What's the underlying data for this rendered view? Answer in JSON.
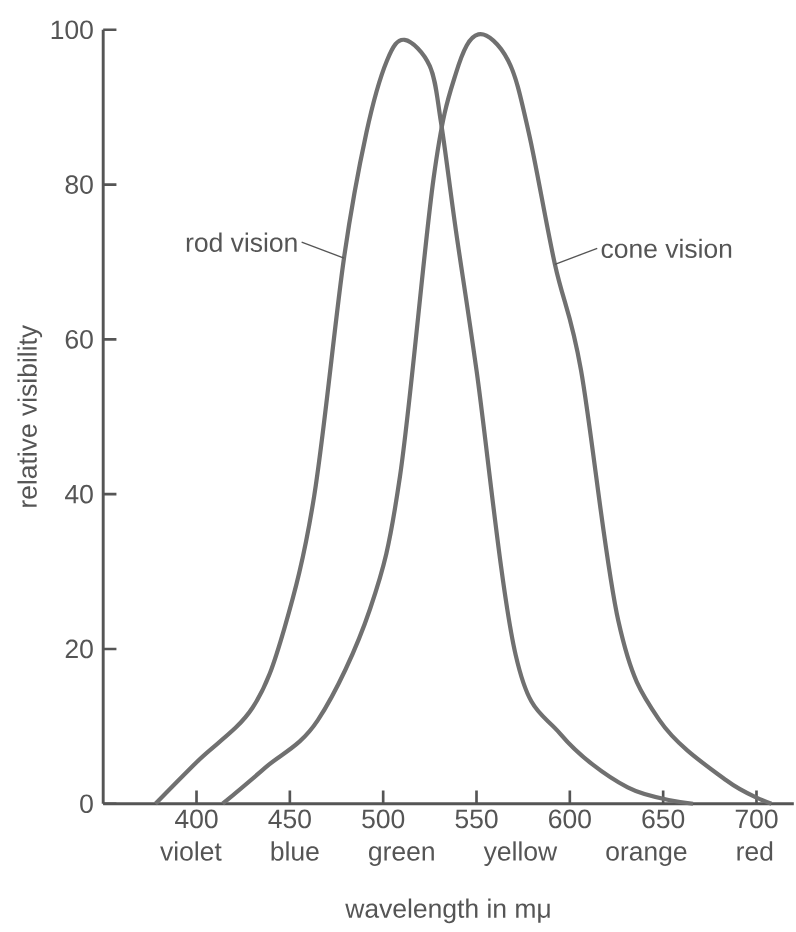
{
  "chart_data": {
    "type": "line",
    "xlabel": "wavelength in mμ",
    "ylabel": "relative visibility",
    "xlim": [
      350,
      720
    ],
    "ylim": [
      0,
      100
    ],
    "xticks": [
      400,
      450,
      500,
      550,
      600,
      650,
      700
    ],
    "yticks": [
      0,
      20,
      40,
      60,
      80,
      100
    ],
    "series": [
      {
        "name": "rod vision",
        "color": "#707070",
        "x": [
          378,
          401,
          430,
          447,
          463,
          479,
          491,
          502,
          511.5,
          525,
          531,
          539,
          550,
          571,
          595,
          631,
          666
        ],
        "values": [
          0,
          5.6,
          12.4,
          22.6,
          39.7,
          70.5,
          86.7,
          96,
          98.7,
          95.3,
          88,
          74,
          56,
          19.2,
          9,
          2.1,
          0
        ]
      },
      {
        "name": "cone vision",
        "color": "#707070",
        "x": [
          414,
          437,
          465,
          493,
          509,
          527,
          539,
          551,
          567,
          578,
          592,
          606,
          626,
          648,
          684,
          708
        ],
        "values": [
          0,
          4.7,
          10.8,
          25.2,
          42.3,
          80.8,
          94.4,
          99.4,
          96,
          86.7,
          69.7,
          56,
          23.6,
          10.8,
          3,
          0
        ]
      }
    ],
    "annotations": [
      "violet",
      "blue",
      "green",
      "yellow",
      "orange",
      "red"
    ]
  }
}
